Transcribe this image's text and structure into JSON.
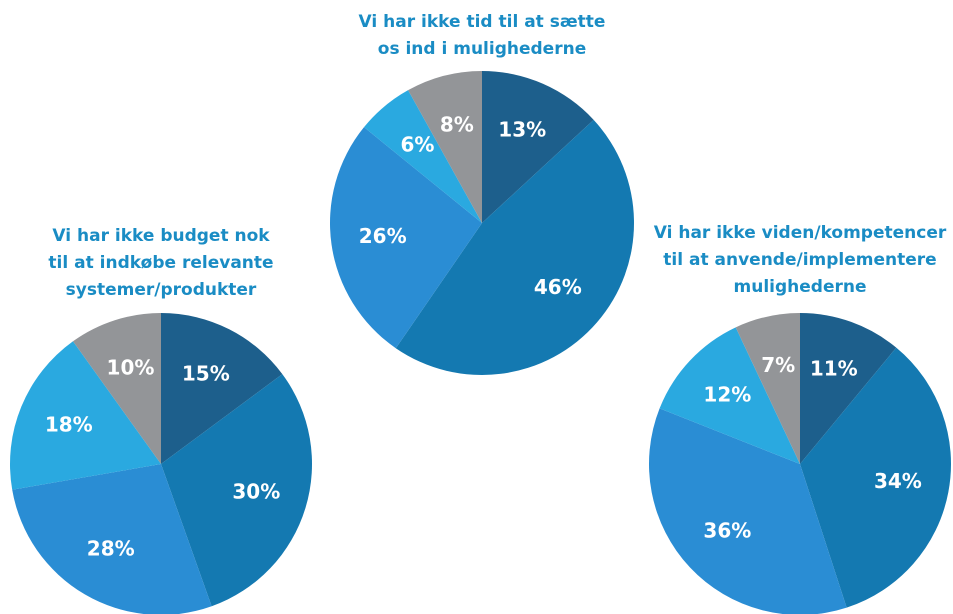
{
  "chart_data": [
    {
      "type": "pie",
      "title": [
        "Vi har ikke tid til at sætte",
        "os ind i mulighederne"
      ],
      "values": [
        13,
        46,
        26,
        6,
        8
      ],
      "value_labels": [
        "13%",
        "46%",
        "26%",
        "6%",
        "8%"
      ],
      "colors": [
        "#1d5f8c",
        "#1479b1",
        "#2a8dd4",
        "#2aa9e0",
        "#939598"
      ]
    },
    {
      "type": "pie",
      "title": [
        "Vi har ikke budget nok",
        "til at indkøbe relevante",
        "systemer/produkter"
      ],
      "values": [
        15,
        30,
        28,
        18,
        10
      ],
      "value_labels": [
        "15%",
        "30%",
        "28%",
        "18%",
        "10%"
      ],
      "colors": [
        "#1d5f8c",
        "#1479b1",
        "#2a8dd4",
        "#2aa9e0",
        "#939598"
      ]
    },
    {
      "type": "pie",
      "title": [
        "Vi har ikke viden/kompetencer",
        "til at anvende/implementere",
        "mulighederne"
      ],
      "values": [
        11,
        34,
        36,
        12,
        7
      ],
      "value_labels": [
        "11%",
        "34%",
        "36%",
        "12%",
        "7%"
      ],
      "colors": [
        "#1d5f8c",
        "#1479b1",
        "#2a8dd4",
        "#2aa9e0",
        "#939598"
      ]
    }
  ]
}
